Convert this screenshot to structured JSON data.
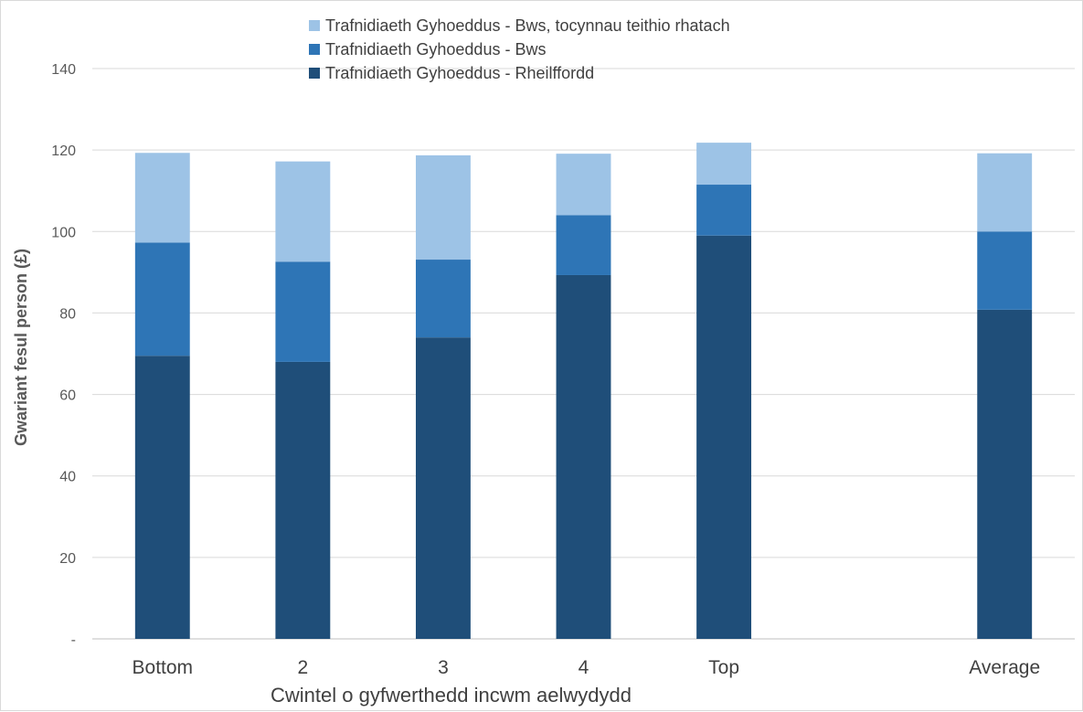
{
  "chart_data": {
    "type": "bar",
    "stacked": true,
    "title": "",
    "xlabel": "Cwintel o gyfwerthedd incwm aelwydydd",
    "ylabel": "Gwariant fesul person (£)",
    "ylim": [
      0,
      140
    ],
    "yticks": [
      0,
      20,
      40,
      60,
      80,
      100,
      120,
      140
    ],
    "ytick_labels": [
      "-",
      "20",
      "40",
      "60",
      "80",
      "100",
      "120",
      "140"
    ],
    "grid": true,
    "legend_position": "top",
    "categories": [
      "Bottom",
      "2",
      "3",
      "4",
      "Top",
      "",
      "Average"
    ],
    "series": [
      {
        "name": "Trafnidiaeth Gyhoeddus - Rheilffordd",
        "color": "#1f4e79",
        "values": [
          69.5,
          68.0,
          74.0,
          89.3,
          99.0,
          null,
          80.8
        ]
      },
      {
        "name": "Trafnidiaeth Gyhoeddus - Bws",
        "color": "#2e75b6",
        "values": [
          27.8,
          24.6,
          19.1,
          14.7,
          12.5,
          null,
          19.2
        ]
      },
      {
        "name": "Trafnidiaeth Gyhoeddus - Bws, tocynnau teithio rhatach",
        "color": "#9dc3e6",
        "values": [
          22.0,
          24.6,
          25.6,
          15.1,
          10.3,
          null,
          19.2
        ]
      }
    ]
  }
}
